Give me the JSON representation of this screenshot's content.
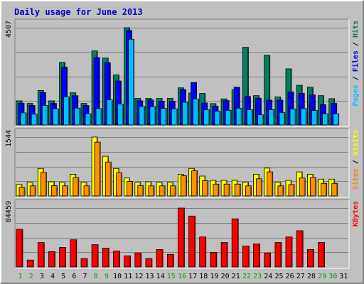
{
  "title": "Daily usage for June 2013",
  "chart_data": {
    "type": "bar",
    "days": [
      "1",
      "2",
      "3",
      "4",
      "5",
      "6",
      "7",
      "8",
      "9",
      "10",
      "11",
      "12",
      "13",
      "14",
      "15",
      "16",
      "17",
      "18",
      "19",
      "20",
      "21",
      "22",
      "23",
      "24",
      "25",
      "26",
      "27",
      "28",
      "29",
      "30",
      "31"
    ],
    "weekend_days": [
      "1",
      "2",
      "8",
      "9",
      "15",
      "16",
      "22",
      "23",
      "29",
      "30"
    ],
    "panels": [
      {
        "name": "top",
        "max_label": "4507",
        "ymax": 4507,
        "legend": [
          {
            "text": "Pages",
            "color": "#00c0ff"
          },
          {
            "text": " / ",
            "color": "#000000"
          },
          {
            "text": "Files",
            "color": "#0000ff"
          },
          {
            "text": " / ",
            "color": "#000000"
          },
          {
            "text": "Hits",
            "color": "#008040"
          }
        ],
        "series": [
          {
            "name": "Hits",
            "color": "#008060",
            "values": [
              1120,
              1000,
              1600,
              1120,
              2900,
              1490,
              1000,
              3430,
              3100,
              2320,
              4507,
              1230,
              1230,
              1230,
              1230,
              1720,
              1480,
              1460,
              990,
              1210,
              1630,
              3600,
              1360,
              3230,
              1300,
              2600,
              1840,
              1750,
              1360,
              1220,
              0
            ]
          },
          {
            "name": "Files",
            "color": "#0000ff",
            "values": [
              1010,
              900,
              1500,
              1000,
              2680,
              1360,
              900,
              3120,
              2890,
              2040,
              4380,
              1120,
              1160,
              1100,
              1100,
              1640,
              1970,
              1020,
              870,
              1130,
              1750,
              1320,
              1240,
              1150,
              1150,
              1530,
              1470,
              1390,
              940,
              1000,
              0
            ]
          },
          {
            "name": "Pages",
            "color": "#00bfff",
            "values": [
              560,
              500,
              900,
              750,
              1300,
              780,
              520,
              760,
              1160,
              970,
              3970,
              860,
              850,
              770,
              750,
              1050,
              1200,
              700,
              640,
              680,
              780,
              710,
              470,
              710,
              570,
              740,
              760,
              670,
              520,
              520,
              0
            ]
          }
        ]
      },
      {
        "name": "middle",
        "max_label": "1544",
        "ymax": 1544,
        "legend": [
          {
            "text": "Sites",
            "color": "#ff8000"
          },
          {
            "text": " / ",
            "color": "#000000"
          },
          {
            "text": "Visits",
            "color": "#ffff00"
          }
        ],
        "series": [
          {
            "name": "Visits",
            "color": "#ffff00",
            "values": [
              300,
              355,
              720,
              370,
              355,
              570,
              355,
              1544,
              1040,
              720,
              470,
              355,
              370,
              355,
              355,
              570,
              720,
              520,
              410,
              410,
              410,
              355,
              570,
              730,
              355,
              410,
              630,
              570,
              440,
              440,
              0
            ]
          },
          {
            "name": "Sites",
            "color": "#ff9000",
            "values": [
              220,
              265,
              620,
              270,
              265,
              480,
              265,
              1410,
              890,
              610,
              380,
              270,
              265,
              265,
              265,
              530,
              660,
              400,
              310,
              310,
              310,
              265,
              450,
              630,
              265,
              300,
              470,
              480,
              330,
              330,
              0
            ]
          }
        ]
      },
      {
        "name": "bottom",
        "max_label": "84459",
        "ymax": 84459,
        "legend": [
          {
            "text": "KBytes",
            "color": "#ff0000"
          }
        ],
        "series": [
          {
            "name": "KBytes",
            "color": "#ff0000",
            "values": [
              54000,
              10000,
              35000,
              22000,
              28000,
              39000,
              12000,
              32000,
              27000,
              23000,
              16000,
              20000,
              12000,
              25000,
              18000,
              84459,
              73000,
              43000,
              21000,
              35000,
              69000,
              30000,
              33000,
              20000,
              35000,
              43000,
              52000,
              25000,
              35000,
              0,
              0
            ]
          }
        ]
      }
    ]
  }
}
